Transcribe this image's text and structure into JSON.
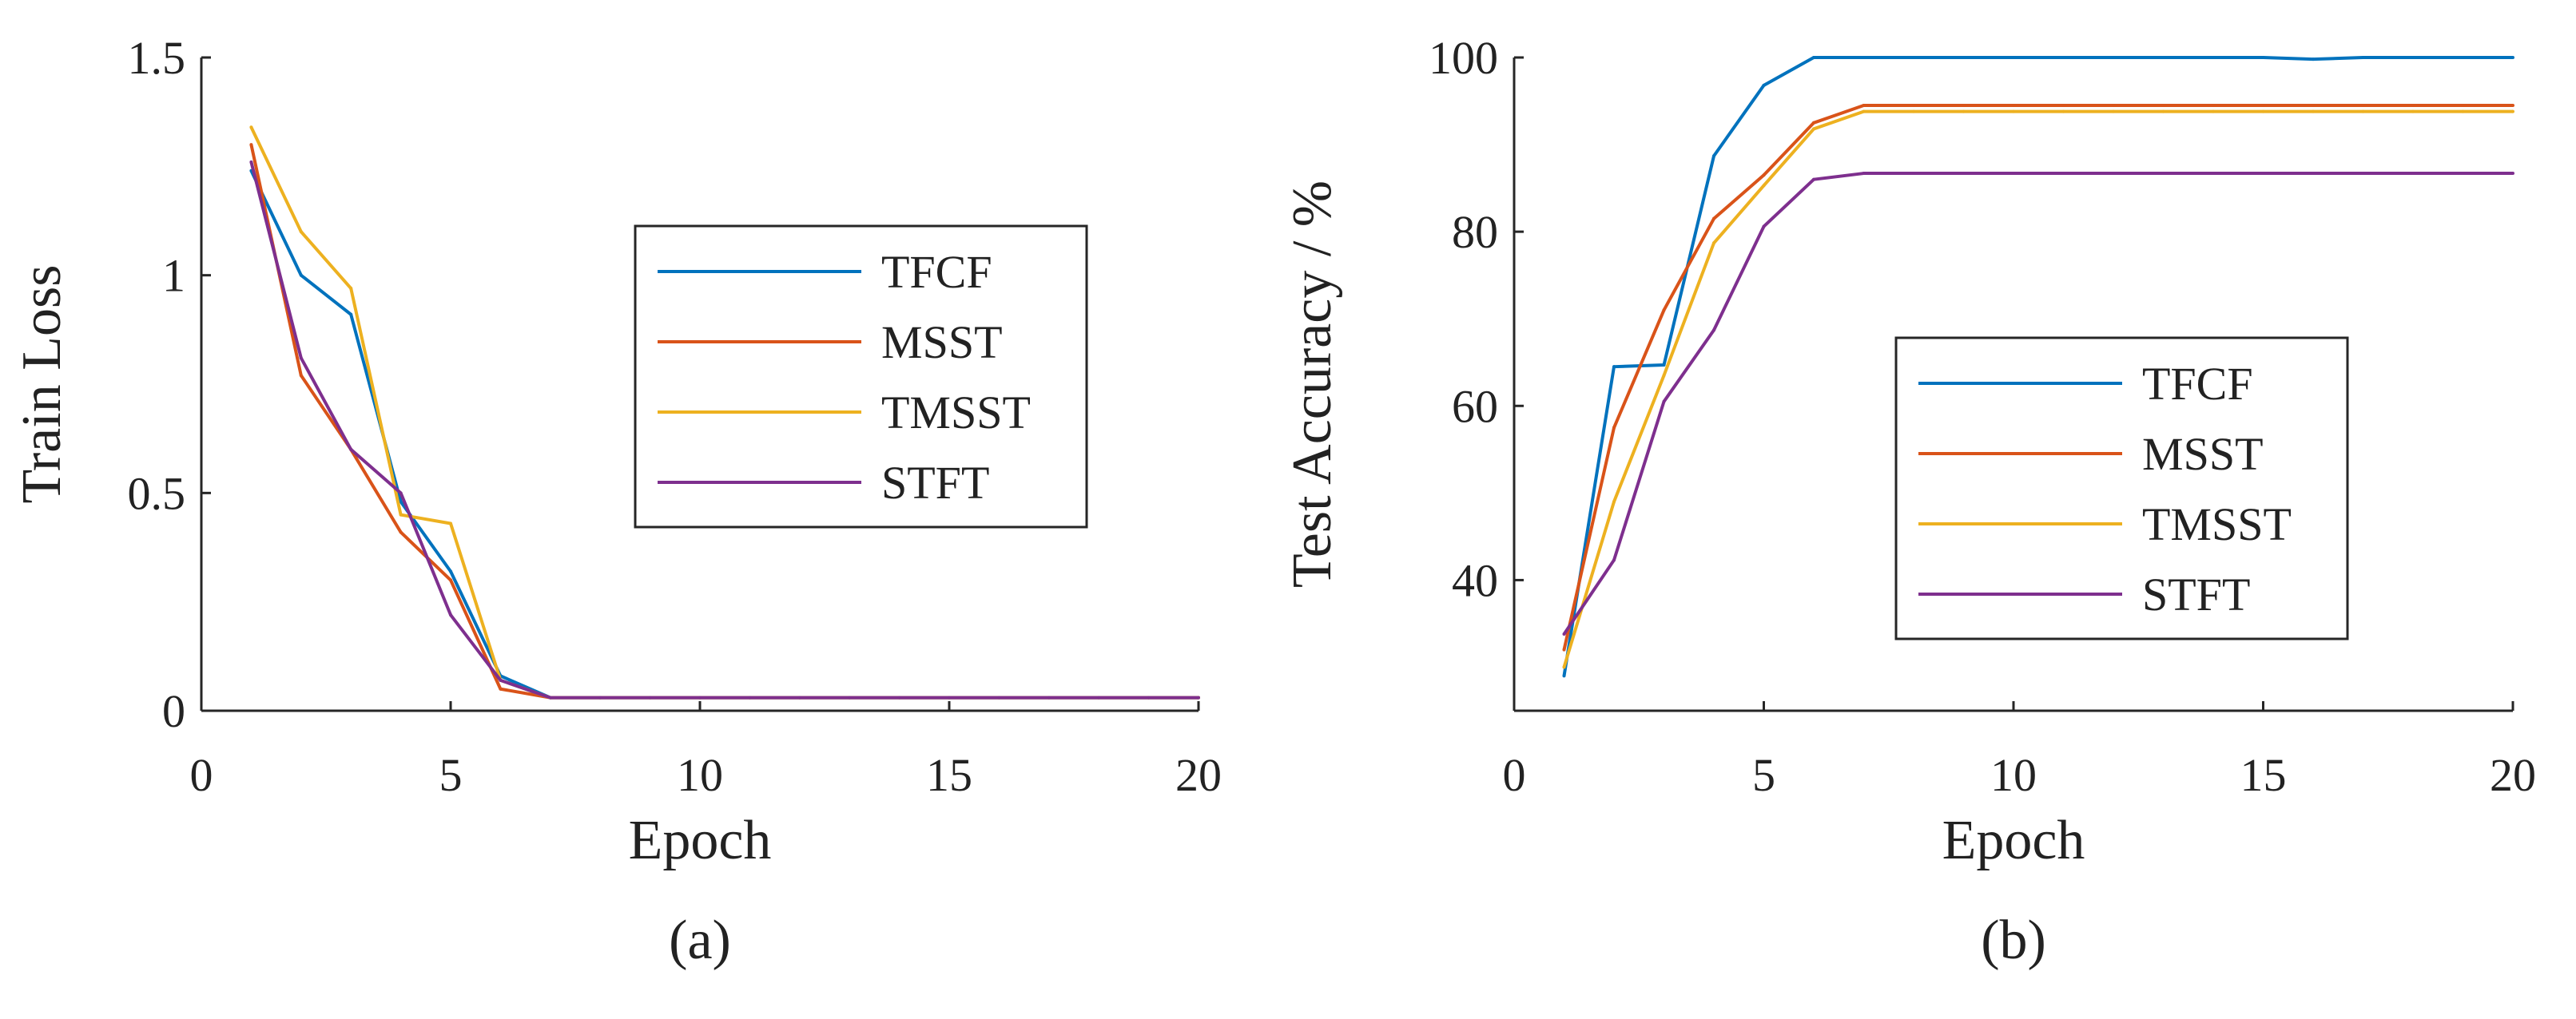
{
  "chart_data": [
    {
      "type": "line",
      "title": "",
      "caption": "(a)",
      "xlabel": "Epoch",
      "ylabel": "Train Loss",
      "xlim": [
        0,
        20
      ],
      "ylim": [
        0,
        1.5
      ],
      "xticks": [
        0,
        5,
        10,
        15,
        20
      ],
      "yticks": [
        0,
        0.5,
        1,
        1.5
      ],
      "xtick_labels": [
        "0",
        "5",
        "10",
        "15",
        "20"
      ],
      "ytick_labels": [
        "0",
        "0.5",
        "1",
        "1.5"
      ],
      "legend_position": "center-right",
      "x": [
        1,
        2,
        3,
        4,
        5,
        6,
        7,
        8,
        9,
        10,
        11,
        12,
        13,
        14,
        15,
        16,
        17,
        18,
        19,
        20
      ],
      "series": [
        {
          "name": "TFCF",
          "color": "#0072BD",
          "values": [
            1.24,
            1.0,
            0.91,
            0.48,
            0.32,
            0.08,
            0.03,
            0.03,
            0.03,
            0.03,
            0.03,
            0.03,
            0.03,
            0.03,
            0.03,
            0.03,
            0.03,
            0.03,
            0.03,
            0.03
          ]
        },
        {
          "name": "MSST",
          "color": "#D95319",
          "values": [
            1.3,
            0.77,
            0.6,
            0.41,
            0.3,
            0.05,
            0.03,
            0.03,
            0.03,
            0.03,
            0.03,
            0.03,
            0.03,
            0.03,
            0.03,
            0.03,
            0.03,
            0.03,
            0.03,
            0.03
          ]
        },
        {
          "name": "TMSST",
          "color": "#EDB120",
          "values": [
            1.34,
            1.1,
            0.97,
            0.45,
            0.43,
            0.07,
            0.03,
            0.03,
            0.03,
            0.03,
            0.03,
            0.03,
            0.03,
            0.03,
            0.03,
            0.03,
            0.03,
            0.03,
            0.03,
            0.03
          ]
        },
        {
          "name": "STFT",
          "color": "#7E2F8E",
          "values": [
            1.26,
            0.81,
            0.6,
            0.5,
            0.22,
            0.07,
            0.03,
            0.03,
            0.03,
            0.03,
            0.03,
            0.03,
            0.03,
            0.03,
            0.03,
            0.03,
            0.03,
            0.03,
            0.03,
            0.03
          ]
        }
      ]
    },
    {
      "type": "line",
      "title": "",
      "caption": "(b)",
      "xlabel": "Epoch",
      "ylabel": "Test Accuracy / %",
      "xlim": [
        0,
        20
      ],
      "ylim": [
        25,
        100
      ],
      "xticks": [
        0,
        5,
        10,
        15,
        20
      ],
      "yticks": [
        40,
        60,
        80,
        100
      ],
      "xtick_labels": [
        "0",
        "5",
        "10",
        "15",
        "20"
      ],
      "ytick_labels": [
        "40",
        "60",
        "80",
        "100"
      ],
      "legend_position": "center-right",
      "x": [
        1,
        2,
        3,
        4,
        5,
        6,
        7,
        8,
        9,
        10,
        11,
        12,
        13,
        14,
        15,
        16,
        17,
        18,
        19,
        20
      ],
      "series": [
        {
          "name": "TFCF",
          "color": "#0072BD",
          "values": [
            29,
            64.5,
            64.7,
            88.7,
            96.8,
            100,
            100,
            100,
            100,
            100,
            100,
            100,
            100,
            100,
            100,
            99.8,
            100,
            100,
            100,
            100
          ]
        },
        {
          "name": "MSST",
          "color": "#D95319",
          "values": [
            32,
            57.5,
            71,
            81.5,
            86.5,
            92.5,
            94.5,
            94.5,
            94.5,
            94.5,
            94.5,
            94.5,
            94.5,
            94.5,
            94.5,
            94.5,
            94.5,
            94.5,
            94.5,
            94.5
          ]
        },
        {
          "name": "TMSST",
          "color": "#EDB120",
          "values": [
            30,
            49,
            63.5,
            78.7,
            85.3,
            91.8,
            93.8,
            93.8,
            93.8,
            93.8,
            93.8,
            93.8,
            93.8,
            93.8,
            93.8,
            93.8,
            93.8,
            93.8,
            93.8,
            93.8
          ]
        },
        {
          "name": "STFT",
          "color": "#7E2F8E",
          "values": [
            33.8,
            42.3,
            60.5,
            68.7,
            80.6,
            86,
            86.7,
            86.7,
            86.7,
            86.7,
            86.7,
            86.7,
            86.7,
            86.7,
            86.7,
            86.7,
            86.7,
            86.7,
            86.7,
            86.7
          ]
        }
      ]
    }
  ]
}
